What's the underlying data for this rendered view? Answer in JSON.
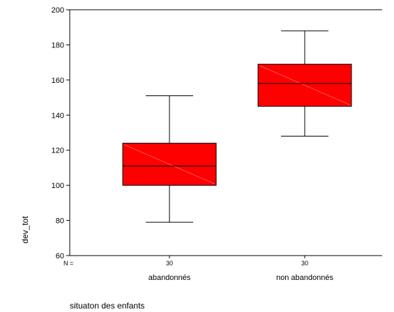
{
  "chart_data": {
    "type": "boxplot",
    "xlabel": "situaton des enfants",
    "ylabel": "dev_tot",
    "ylim": [
      60,
      200
    ],
    "yticks": [
      60,
      80,
      100,
      120,
      140,
      160,
      180,
      200
    ],
    "n_label": "N =",
    "grid": false,
    "box_color": "#ff0000",
    "categories": [
      "abandonnés",
      "non abandonnés"
    ],
    "n_values": [
      "30",
      "30"
    ],
    "boxes": [
      {
        "category": "abandonnés",
        "min": 79,
        "q1": 100,
        "median": 111,
        "q3": 124,
        "max": 151
      },
      {
        "category": "non abandonnés",
        "min": 128,
        "q1": 145,
        "median": 158,
        "q3": 169,
        "max": 188
      }
    ]
  }
}
